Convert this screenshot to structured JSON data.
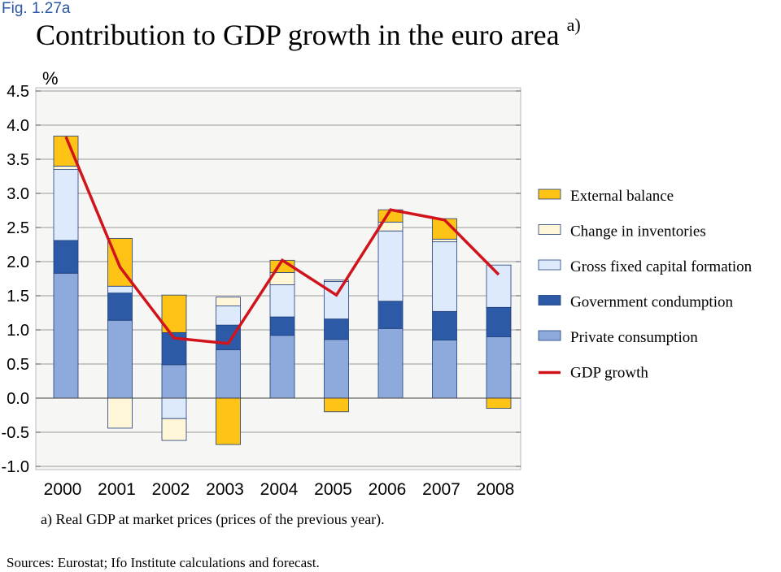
{
  "figure_label": "Fig. 1.27a",
  "title": "Contribution to GDP growth in the euro area",
  "title_superscript": "a)",
  "unit": "%",
  "footnote": "a) Real GDP at market prices (prices of the previous year).",
  "sources": "Sources: Eurostat; Ifo Institute calculations and forecast.",
  "colors": {
    "external_balance": "#fec315",
    "change_in_inventories": "#fff6d7",
    "gross_fixed_capital_formation": "#ddeafc",
    "government_consumption": "#2c5aa6",
    "private_consumption": "#8ea9dc",
    "gdp_line": "#d1141c",
    "plot_background": "#f6f6f4",
    "bar_edge": "#1e3e7c"
  },
  "chart_data": {
    "type": "bar",
    "stacked": true,
    "categories": [
      "2000",
      "2001",
      "2002",
      "2003",
      "2004",
      "2005",
      "2006",
      "2007",
      "2008"
    ],
    "ylim": [
      -1.0,
      4.5
    ],
    "yticks": [
      "4.5",
      "4.0",
      "3.5",
      "3.0",
      "2.5",
      "2.0",
      "1.5",
      "1.0",
      "0.5",
      "0.0",
      "-0.5",
      "-1.0"
    ],
    "ytick_values": [
      4.5,
      4.0,
      3.5,
      3.0,
      2.5,
      2.0,
      1.5,
      1.0,
      0.5,
      0.0,
      -0.5,
      -1.0
    ],
    "grid": true,
    "legend_position": "right",
    "series": [
      {
        "name": "Private consumption",
        "key": "private_consumption",
        "values": [
          1.83,
          1.14,
          0.49,
          0.71,
          0.92,
          0.86,
          1.02,
          0.85,
          0.9
        ]
      },
      {
        "name": "Government condumption",
        "key": "government_consumption",
        "values": [
          0.48,
          0.4,
          0.47,
          0.36,
          0.27,
          0.3,
          0.4,
          0.42,
          0.43
        ]
      },
      {
        "name": "Gross fixed capital formation",
        "key": "gross_fixed_capital_formation",
        "values": [
          1.04,
          0.1,
          -0.3,
          0.28,
          0.47,
          0.55,
          1.03,
          1.02,
          0.62
        ]
      },
      {
        "name": "Change in inventories",
        "key": "change_in_inventories",
        "values": [
          0.05,
          -0.44,
          -0.32,
          0.13,
          0.18,
          0.02,
          0.13,
          0.04,
          0.0
        ]
      },
      {
        "name": "External balance",
        "key": "external_balance",
        "values": [
          0.44,
          0.7,
          0.55,
          -0.68,
          0.18,
          -0.2,
          0.18,
          0.3,
          -0.15
        ]
      }
    ],
    "line": {
      "name": "GDP growth",
      "key": "gdp_line",
      "values": [
        3.83,
        1.92,
        0.88,
        0.8,
        2.02,
        1.51,
        2.76,
        2.61,
        1.81
      ]
    },
    "legend": [
      {
        "label": "External balance",
        "key": "external_balance",
        "kind": "box"
      },
      {
        "label": "Change in inventories",
        "key": "change_in_inventories",
        "kind": "box"
      },
      {
        "label": "Gross fixed capital formation",
        "key": "gross_fixed_capital_formation",
        "kind": "box"
      },
      {
        "label": "Government condumption",
        "key": "government_consumption",
        "kind": "box"
      },
      {
        "label": "Private consumption",
        "key": "private_consumption",
        "kind": "box"
      },
      {
        "label": "GDP growth",
        "key": "gdp_line",
        "kind": "line"
      }
    ]
  }
}
